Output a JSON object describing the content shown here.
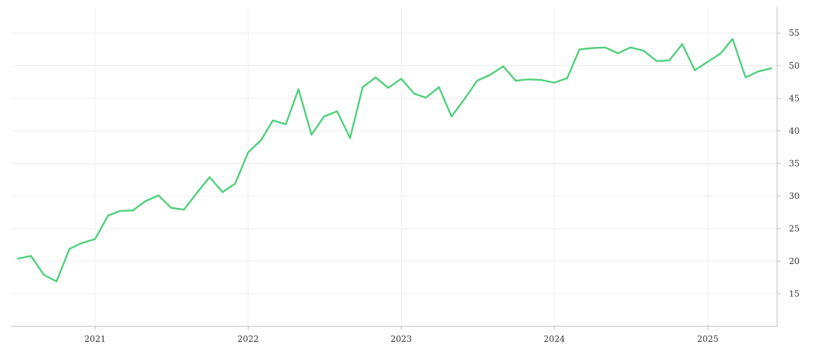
{
  "chart_data": {
    "type": "line",
    "title": "",
    "xlabel": "",
    "ylabel": "",
    "x_ticks": [
      {
        "date": "2021-01-01",
        "label": "2021"
      },
      {
        "date": "2022-01-01",
        "label": "2022"
      },
      {
        "date": "2023-01-01",
        "label": "2023"
      },
      {
        "date": "2024-01-01",
        "label": "2024"
      },
      {
        "date": "2025-01-01",
        "label": "2025"
      }
    ],
    "y_ticks": [
      15,
      20,
      25,
      30,
      35,
      40,
      45,
      50,
      55
    ],
    "y_axis_position": "right",
    "ylim": [
      10,
      59
    ],
    "xlim": [
      "2020-06-15",
      "2025-06-15"
    ],
    "grid": true,
    "line_color": "#4cd07a",
    "grid_color": "#ececec",
    "axis_color": "#bbbbbb",
    "tick_label_color": "#333333",
    "series": [
      {
        "x": [
          "2020-07-01",
          "2020-08-01",
          "2020-09-01",
          "2020-10-01",
          "2020-11-01",
          "2020-12-01",
          "2021-01-01",
          "2021-02-01",
          "2021-03-01",
          "2021-04-01",
          "2021-05-01",
          "2021-06-01",
          "2021-07-01",
          "2021-08-01",
          "2021-09-01",
          "2021-10-01",
          "2021-11-01",
          "2021-12-01",
          "2022-01-01",
          "2022-02-01",
          "2022-03-01",
          "2022-04-01",
          "2022-05-01",
          "2022-06-01",
          "2022-07-01",
          "2022-08-01",
          "2022-09-01",
          "2022-10-01",
          "2022-11-01",
          "2022-12-01",
          "2023-01-01",
          "2023-02-01",
          "2023-03-01",
          "2023-04-01",
          "2023-05-01",
          "2023-06-01",
          "2023-07-01",
          "2023-08-01",
          "2023-09-01",
          "2023-10-01",
          "2023-11-01",
          "2023-12-01",
          "2024-01-01",
          "2024-02-01",
          "2024-03-01",
          "2024-04-01",
          "2024-05-01",
          "2024-06-01",
          "2024-07-01",
          "2024-08-01",
          "2024-09-01",
          "2024-10-01",
          "2024-11-01",
          "2024-12-01",
          "2025-01-01",
          "2025-02-01",
          "2025-03-01",
          "2025-04-01",
          "2025-05-01",
          "2025-06-01"
        ],
        "y": [
          20.4,
          20.8,
          17.9,
          16.9,
          21.9,
          22.8,
          23.4,
          27.0,
          27.7,
          27.8,
          29.2,
          30.1,
          28.2,
          27.9,
          30.5,
          32.9,
          30.6,
          31.9,
          36.7,
          38.6,
          41.6,
          41.0,
          46.4,
          39.4,
          42.2,
          43.0,
          38.9,
          46.7,
          48.2,
          46.6,
          48.0,
          45.7,
          45.1,
          46.7,
          42.2,
          44.9,
          47.7,
          48.6,
          49.9,
          47.7,
          47.9,
          47.8,
          47.4,
          48.1,
          52.5,
          52.7,
          52.8,
          51.9,
          52.8,
          52.3,
          50.7,
          50.8,
          53.3,
          49.3,
          50.6,
          51.9,
          54.1,
          48.2,
          49.1,
          49.6
        ]
      }
    ]
  }
}
